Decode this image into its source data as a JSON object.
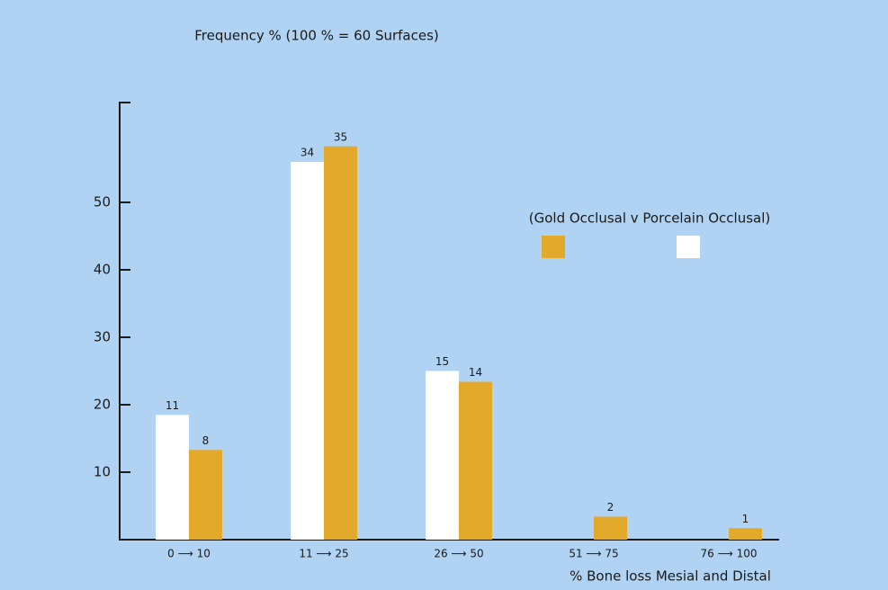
{
  "chart_data": {
    "type": "bar",
    "title": "Frequency % (100 % = 60 Surfaces)",
    "x_label": "% Bone loss Mesial and Distal",
    "legend_title": "(Gold Occlusal v Porcelain Occlusal)",
    "categories": [
      "0 ⟶ 10",
      "11 ⟶ 25",
      "26 ⟶ 50",
      "51 ⟶ 75",
      "76 ⟶ 100"
    ],
    "series": [
      {
        "color": "#ffffff",
        "values": [
          18.5,
          56,
          25,
          0,
          0
        ],
        "value_labels": [
          "11",
          "34",
          "15",
          null,
          null
        ]
      },
      {
        "color": "#e2a92b",
        "values": [
          13.3,
          58.3,
          23.4,
          3.4,
          1.7
        ],
        "value_labels": [
          "8",
          "35",
          "14",
          "2",
          "1"
        ]
      }
    ],
    "ylim": [
      0,
      65
    ],
    "yticks": [
      10,
      20,
      30,
      40,
      50
    ],
    "grid": false
  }
}
